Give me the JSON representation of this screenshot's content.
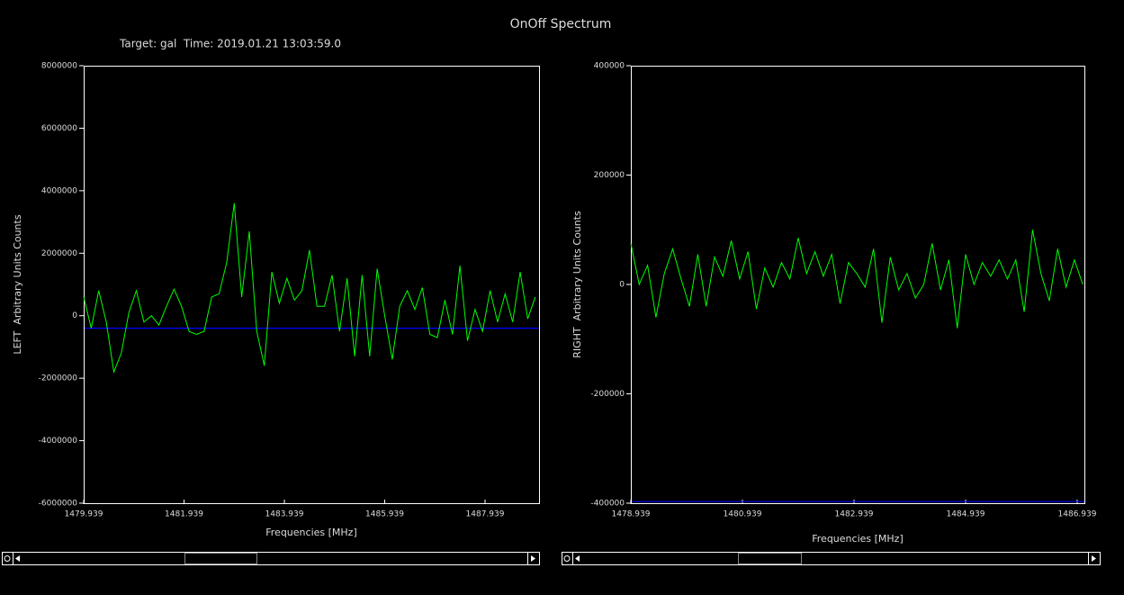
{
  "title": "OnOff Spectrum",
  "chart_data": [
    {
      "type": "line",
      "subtitle": "Target: gal  Time: 2019.01.21 13:03:59.0",
      "x_label": "Frequencies [MHz]",
      "y_label": "LEFT  Arbitrary Units Counts",
      "color": "#00ff00",
      "hline": -400000,
      "hline_color": "#0000ff",
      "xlim": [
        1479.939,
        1489.015
      ],
      "xticks": [
        1479.939,
        1481.939,
        1483.939,
        1485.939,
        1487.939
      ],
      "ylim": [
        -6000000,
        8000000
      ],
      "yticks": [
        -6000000,
        -4000000,
        -2000000,
        0,
        2000000,
        4000000,
        6000000,
        8000000
      ],
      "x": [
        1479.939,
        1480.089,
        1480.239,
        1480.389,
        1480.539,
        1480.689,
        1480.839,
        1480.989,
        1481.139,
        1481.289,
        1481.439,
        1481.589,
        1481.739,
        1481.889,
        1482.039,
        1482.189,
        1482.339,
        1482.489,
        1482.639,
        1482.789,
        1482.939,
        1483.089,
        1483.239,
        1483.389,
        1483.539,
        1483.689,
        1483.839,
        1483.989,
        1484.139,
        1484.289,
        1484.439,
        1484.589,
        1484.739,
        1484.889,
        1485.039,
        1485.189,
        1485.339,
        1485.489,
        1485.639,
        1485.789,
        1485.939,
        1486.089,
        1486.239,
        1486.389,
        1486.539,
        1486.689,
        1486.839,
        1486.989,
        1487.139,
        1487.289,
        1487.439,
        1487.589,
        1487.739,
        1487.889,
        1488.039,
        1488.189,
        1488.339,
        1488.489,
        1488.639,
        1488.789,
        1488.939
      ],
      "values": [
        600000,
        -400000,
        800000,
        -200000,
        -1800000,
        -1200000,
        100000,
        800000,
        -200000,
        0,
        -300000,
        300000,
        850000,
        300000,
        -500000,
        -600000,
        -500000,
        600000,
        700000,
        1700000,
        3600000,
        600000,
        2700000,
        -500000,
        -1600000,
        1400000,
        400000,
        1200000,
        500000,
        800000,
        2100000,
        300000,
        300000,
        1300000,
        -500000,
        1200000,
        -1300000,
        1300000,
        -1300000,
        1500000,
        0,
        -1400000,
        300000,
        800000,
        200000,
        900000,
        -600000,
        -700000,
        500000,
        -600000,
        1600000,
        -800000,
        200000,
        -500000,
        800000,
        -200000,
        700000,
        -200000,
        1400000,
        -100000,
        600000
      ]
    },
    {
      "type": "line",
      "x_label": "Frequencies [MHz]",
      "y_label": "RIGHT  Arbitrary Units Counts",
      "color": "#00ff00",
      "hline": -397000,
      "hline_color": "#0000ff",
      "xlim": [
        1478.939,
        1487.068
      ],
      "xticks": [
        1478.939,
        1480.939,
        1482.939,
        1484.939,
        1486.939
      ],
      "ylim": [
        -400000,
        400000
      ],
      "yticks": [
        -400000,
        -200000,
        0,
        200000,
        400000
      ],
      "x": [
        1478.939,
        1479.089,
        1479.239,
        1479.389,
        1479.539,
        1479.689,
        1479.839,
        1479.989,
        1480.139,
        1480.289,
        1480.439,
        1480.589,
        1480.739,
        1480.889,
        1481.039,
        1481.189,
        1481.339,
        1481.489,
        1481.639,
        1481.789,
        1481.939,
        1482.089,
        1482.239,
        1482.389,
        1482.539,
        1482.689,
        1482.839,
        1482.989,
        1483.139,
        1483.289,
        1483.439,
        1483.589,
        1483.739,
        1483.889,
        1484.039,
        1484.189,
        1484.339,
        1484.489,
        1484.639,
        1484.789,
        1484.939,
        1485.089,
        1485.239,
        1485.389,
        1485.539,
        1485.689,
        1485.839,
        1485.989,
        1486.139,
        1486.289,
        1486.439,
        1486.589,
        1486.739,
        1486.889,
        1487.039
      ],
      "values": [
        75000,
        0,
        35000,
        -60000,
        20000,
        65000,
        10000,
        -40000,
        55000,
        -40000,
        50000,
        15000,
        80000,
        10000,
        60000,
        -45000,
        30000,
        -5000,
        40000,
        10000,
        85000,
        20000,
        60000,
        15000,
        55000,
        -35000,
        40000,
        20000,
        -5000,
        65000,
        -70000,
        50000,
        -10000,
        20000,
        -25000,
        0,
        75000,
        -10000,
        45000,
        -80000,
        55000,
        0,
        40000,
        15000,
        45000,
        10000,
        45000,
        -50000,
        100000,
        20000,
        -30000,
        65000,
        -5000,
        45000,
        0
      ]
    }
  ]
}
